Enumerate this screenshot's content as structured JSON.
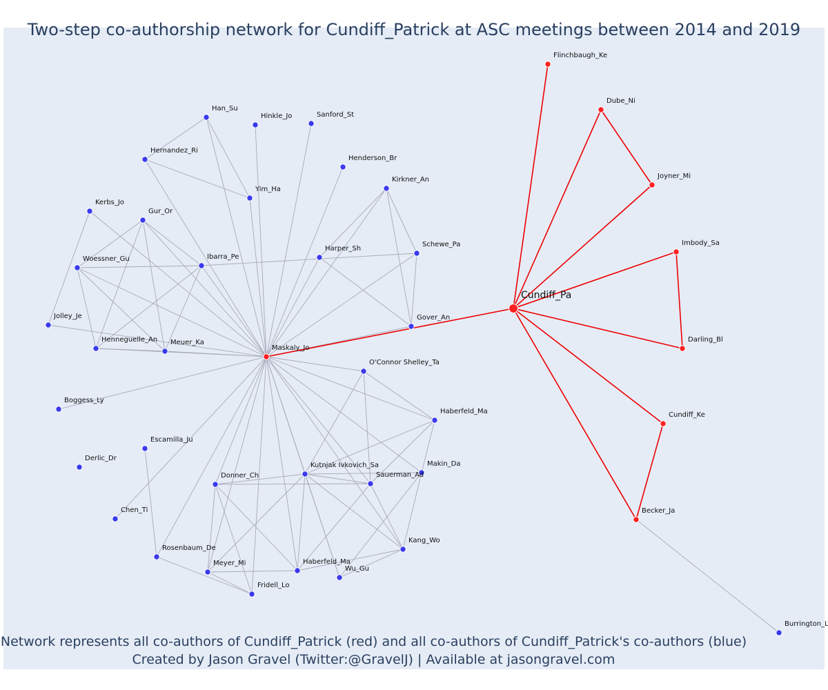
{
  "title": "Two-step co-authorship network for Cundiff_Patrick at ASC meetings between 2014 and 2019",
  "captions": {
    "line1": "Network represents all co-authors of Cundiff_Patrick (red) and all co-authors of Cundiff_Patrick's co-authors (blue)",
    "line2": "Created by Jason Gravel (Twitter:@GravelJ) | Available at jasongravel.com"
  },
  "colors": {
    "background": "#e5ecf6",
    "red_node": "#ff2020",
    "blue_node": "#3a3aee",
    "red_edge": "#ee0000",
    "gray_edge": "#a9a9b8",
    "text": "#2a3f5f"
  },
  "nodes": [
    {
      "id": "Cundiff_Pa",
      "group": "center"
    },
    {
      "id": "Maskaly_Jo",
      "group": "red"
    },
    {
      "id": "Flinchbaugh_Ke",
      "group": "red"
    },
    {
      "id": "Dube_Ni",
      "group": "red"
    },
    {
      "id": "Joyner_Mi",
      "group": "red"
    },
    {
      "id": "Imbody_Sa",
      "group": "red"
    },
    {
      "id": "Darling_Bl",
      "group": "red"
    },
    {
      "id": "Cundiff_Ke",
      "group": "red"
    },
    {
      "id": "Becker_Ja",
      "group": "red"
    },
    {
      "id": "Burrington_L",
      "group": "blue"
    },
    {
      "id": "Han_Su",
      "group": "blue"
    },
    {
      "id": "Hinkle_Jo",
      "group": "blue"
    },
    {
      "id": "Sanford_St",
      "group": "blue"
    },
    {
      "id": "Hernandez_Ri",
      "group": "blue"
    },
    {
      "id": "Henderson_Br",
      "group": "blue"
    },
    {
      "id": "Yim_Ha",
      "group": "blue"
    },
    {
      "id": "Kirkner_An",
      "group": "blue"
    },
    {
      "id": "Kerbs_Jo",
      "group": "blue"
    },
    {
      "id": "Gur_Or",
      "group": "blue"
    },
    {
      "id": "Harper_Sh",
      "group": "blue"
    },
    {
      "id": "Schewe_Pa",
      "group": "blue"
    },
    {
      "id": "Woessner_Gu",
      "group": "blue"
    },
    {
      "id": "Ibarra_Pe",
      "group": "blue"
    },
    {
      "id": "Jolley_Je",
      "group": "blue"
    },
    {
      "id": "Gover_An",
      "group": "blue"
    },
    {
      "id": "Henneguelle_An",
      "group": "blue"
    },
    {
      "id": "Meuer_Ka",
      "group": "blue"
    },
    {
      "id": "O'Connor Shelley_Ta",
      "group": "blue"
    },
    {
      "id": "Boggess_Ly",
      "group": "blue"
    },
    {
      "id": "Haberfeld_Ma",
      "group": "blue"
    },
    {
      "id": "Escamilla_Ju",
      "group": "blue"
    },
    {
      "id": "Derlic_Dr",
      "group": "blue"
    },
    {
      "id": "Makin_Da",
      "group": "blue"
    },
    {
      "id": "Kutnjak Ivkovich_Sa",
      "group": "blue"
    },
    {
      "id": "Donner_Ch",
      "group": "blue"
    },
    {
      "id": "Sauerman_Ad",
      "group": "blue"
    },
    {
      "id": "Chen_Ti",
      "group": "blue"
    },
    {
      "id": "Kang_Wo",
      "group": "blue"
    },
    {
      "id": "Rosenbaum_De",
      "group": "blue"
    },
    {
      "id": "Meyer_Mi",
      "group": "blue"
    },
    {
      "id": "Haberfeld_Ma ",
      "group": "blue"
    },
    {
      "id": "Wu_Gu",
      "group": "blue"
    },
    {
      "id": "Fridell_Lo",
      "group": "blue"
    }
  ],
  "edges": [
    [
      "Cundiff_Pa",
      "Maskaly_Jo",
      "red"
    ],
    [
      "Cundiff_Pa",
      "Flinchbaugh_Ke",
      "red"
    ],
    [
      "Cundiff_Pa",
      "Dube_Ni",
      "red"
    ],
    [
      "Cundiff_Pa",
      "Joyner_Mi",
      "red"
    ],
    [
      "Dube_Ni",
      "Joyner_Mi",
      "red"
    ],
    [
      "Cundiff_Pa",
      "Imbody_Sa",
      "red"
    ],
    [
      "Cundiff_Pa",
      "Darling_Bl",
      "red"
    ],
    [
      "Imbody_Sa",
      "Darling_Bl",
      "red"
    ],
    [
      "Cundiff_Pa",
      "Cundiff_Ke",
      "red"
    ],
    [
      "Cundiff_Pa",
      "Becker_Ja",
      "red"
    ],
    [
      "Cundiff_Ke",
      "Becker_Ja",
      "red"
    ],
    [
      "Becker_Ja",
      "Burrington_L",
      "gray"
    ],
    [
      "Han_Su",
      "Hernandez_Ri",
      "gray"
    ],
    [
      "Han_Su",
      "Yim_Ha",
      "gray"
    ],
    [
      "Han_Su",
      "Maskaly_Jo",
      "gray"
    ],
    [
      "Hernandez_Ri",
      "Yim_Ha",
      "gray"
    ],
    [
      "Hernandez_Ri",
      "Maskaly_Jo",
      "gray"
    ],
    [
      "Hinkle_Jo",
      "Maskaly_Jo",
      "gray"
    ],
    [
      "Sanford_St",
      "Maskaly_Jo",
      "gray"
    ],
    [
      "Yim_Ha",
      "Maskaly_Jo",
      "gray"
    ],
    [
      "Henderson_Br",
      "Maskaly_Jo",
      "gray"
    ],
    [
      "Kirkner_An",
      "Maskaly_Jo",
      "gray"
    ],
    [
      "Kirkner_An",
      "Harper_Sh",
      "gray"
    ],
    [
      "Kirkner_An",
      "Schewe_Pa",
      "gray"
    ],
    [
      "Kirkner_An",
      "Gover_An",
      "gray"
    ],
    [
      "Harper_Sh",
      "Maskaly_Jo",
      "gray"
    ],
    [
      "Harper_Sh",
      "Gover_An",
      "gray"
    ],
    [
      "Schewe_Pa",
      "Gover_An",
      "gray"
    ],
    [
      "Schewe_Pa",
      "Maskaly_Jo",
      "gray"
    ],
    [
      "Ibarra_Pe",
      "Schewe_Pa",
      "gray"
    ],
    [
      "Gover_An",
      "Maskaly_Jo",
      "gray"
    ],
    [
      "Kerbs_Jo",
      "Jolley_Je",
      "gray"
    ],
    [
      "Kerbs_Jo",
      "Maskaly_Jo",
      "gray"
    ],
    [
      "Gur_Or",
      "Woessner_Gu",
      "gray"
    ],
    [
      "Gur_Or",
      "Ibarra_Pe",
      "gray"
    ],
    [
      "Gur_Or",
      "Henneguelle_An",
      "gray"
    ],
    [
      "Gur_Or",
      "Meuer_Ka",
      "gray"
    ],
    [
      "Gur_Or",
      "Maskaly_Jo",
      "gray"
    ],
    [
      "Woessner_Gu",
      "Ibarra_Pe",
      "gray"
    ],
    [
      "Woessner_Gu",
      "Henneguelle_An",
      "gray"
    ],
    [
      "Woessner_Gu",
      "Meuer_Ka",
      "gray"
    ],
    [
      "Woessner_Gu",
      "Maskaly_Jo",
      "gray"
    ],
    [
      "Ibarra_Pe",
      "Henneguelle_An",
      "gray"
    ],
    [
      "Ibarra_Pe",
      "Meuer_Ka",
      "gray"
    ],
    [
      "Ibarra_Pe",
      "Maskaly_Jo",
      "gray"
    ],
    [
      "Henneguelle_An",
      "Meuer_Ka",
      "gray"
    ],
    [
      "Henneguelle_An",
      "Maskaly_Jo",
      "gray"
    ],
    [
      "Meuer_Ka",
      "Maskaly_Jo",
      "gray"
    ],
    [
      "Jolley_Je",
      "Maskaly_Jo",
      "gray"
    ],
    [
      "Boggess_Ly",
      "Maskaly_Jo",
      "gray"
    ],
    [
      "O'Connor Shelley_Ta",
      "Maskaly_Jo",
      "gray"
    ],
    [
      "O'Connor Shelley_Ta",
      "Haberfeld_Ma",
      "gray"
    ],
    [
      "O'Connor Shelley_Ta",
      "Kutnjak Ivkovich_Sa",
      "gray"
    ],
    [
      "O'Connor Shelley_Ta",
      "Sauerman_Ad",
      "gray"
    ],
    [
      "Haberfeld_Ma",
      "Maskaly_Jo",
      "gray"
    ],
    [
      "Haberfeld_Ma",
      "Kutnjak Ivkovich_Sa",
      "gray"
    ],
    [
      "Haberfeld_Ma",
      "Sauerman_Ad",
      "gray"
    ],
    [
      "Haberfeld_Ma",
      "Makin_Da",
      "gray"
    ],
    [
      "Makin_Da",
      "Maskaly_Jo",
      "gray"
    ],
    [
      "Makin_Da",
      "Kutnjak Ivkovich_Sa",
      "gray"
    ],
    [
      "Makin_Da",
      "Kang_Wo",
      "gray"
    ],
    [
      "Makin_Da",
      "Wu_Gu",
      "gray"
    ],
    [
      "Escamilla_Ju",
      "Rosenbaum_De",
      "gray"
    ],
    [
      "Rosenbaum_De",
      "Maskaly_Jo",
      "gray"
    ],
    [
      "Rosenbaum_De",
      "Fridell_Lo",
      "gray"
    ],
    [
      "Chen_Ti",
      "Maskaly_Jo",
      "gray"
    ],
    [
      "Kutnjak Ivkovich_Sa",
      "Maskaly_Jo",
      "gray"
    ],
    [
      "Kutnjak Ivkovich_Sa",
      "Donner_Ch",
      "gray"
    ],
    [
      "Kutnjak Ivkovich_Sa",
      "Sauerman_Ad",
      "gray"
    ],
    [
      "Kutnjak Ivkovich_Sa",
      "Kang_Wo",
      "gray"
    ],
    [
      "Kutnjak Ivkovich_Sa",
      "Meyer_Mi",
      "gray"
    ],
    [
      "Kutnjak Ivkovich_Sa",
      "Haberfeld_Ma ",
      "gray"
    ],
    [
      "Kutnjak Ivkovich_Sa",
      "Wu_Gu",
      "gray"
    ],
    [
      "Donner_Ch",
      "Maskaly_Jo",
      "gray"
    ],
    [
      "Donner_Ch",
      "Sauerman_Ad",
      "gray"
    ],
    [
      "Donner_Ch",
      "Meyer_Mi",
      "gray"
    ],
    [
      "Donner_Ch",
      "Haberfeld_Ma ",
      "gray"
    ],
    [
      "Donner_Ch",
      "Fridell_Lo",
      "gray"
    ],
    [
      "Sauerman_Ad",
      "Maskaly_Jo",
      "gray"
    ],
    [
      "Sauerman_Ad",
      "Kang_Wo",
      "gray"
    ],
    [
      "Sauerman_Ad",
      "Haberfeld_Ma ",
      "gray"
    ],
    [
      "Kang_Wo",
      "Maskaly_Jo",
      "gray"
    ],
    [
      "Kang_Wo",
      "Haberfeld_Ma ",
      "gray"
    ],
    [
      "Kang_Wo",
      "Wu_Gu",
      "gray"
    ],
    [
      "Meyer_Mi",
      "Maskaly_Jo",
      "gray"
    ],
    [
      "Meyer_Mi",
      "Haberfeld_Ma ",
      "gray"
    ],
    [
      "Meyer_Mi",
      "Fridell_Lo",
      "gray"
    ],
    [
      "Haberfeld_Ma ",
      "Maskaly_Jo",
      "gray"
    ],
    [
      "Wu_Gu",
      "Maskaly_Jo",
      "gray"
    ],
    [
      "Fridell_Lo",
      "Maskaly_Jo",
      "gray"
    ]
  ]
}
